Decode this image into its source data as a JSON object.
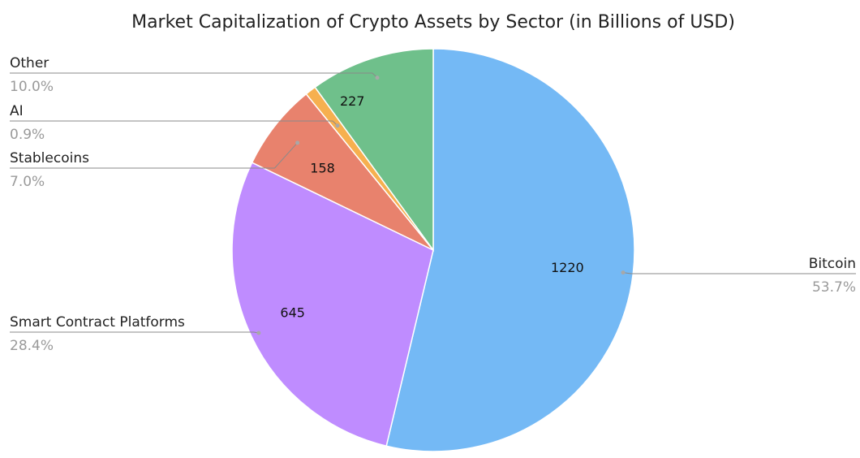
{
  "chart_data": {
    "type": "pie",
    "title": "Market Capitalization of Crypto Assets by Sector (in Billions of USD)",
    "slices": [
      {
        "label": "Bitcoin",
        "value": 1220,
        "percent": "53.7%",
        "color": "#74b9f5"
      },
      {
        "label": "Smart Contract Platforms",
        "value": 645,
        "percent": "28.4%",
        "color": "#bf8cff"
      },
      {
        "label": "Stablecoins",
        "value": 158,
        "percent": "7.0%",
        "color": "#e8826d"
      },
      {
        "label": "AI",
        "value": 20,
        "percent": "0.9%",
        "color": "#f6b04f"
      },
      {
        "label": "Other",
        "value": 227,
        "percent": "10.0%",
        "color": "#6fc08b"
      }
    ],
    "start_angle": "top",
    "direction": "clockwise",
    "show_value_labels": [
      true,
      true,
      true,
      false,
      true
    ],
    "legend_placement": "callout-labels-left-right"
  }
}
